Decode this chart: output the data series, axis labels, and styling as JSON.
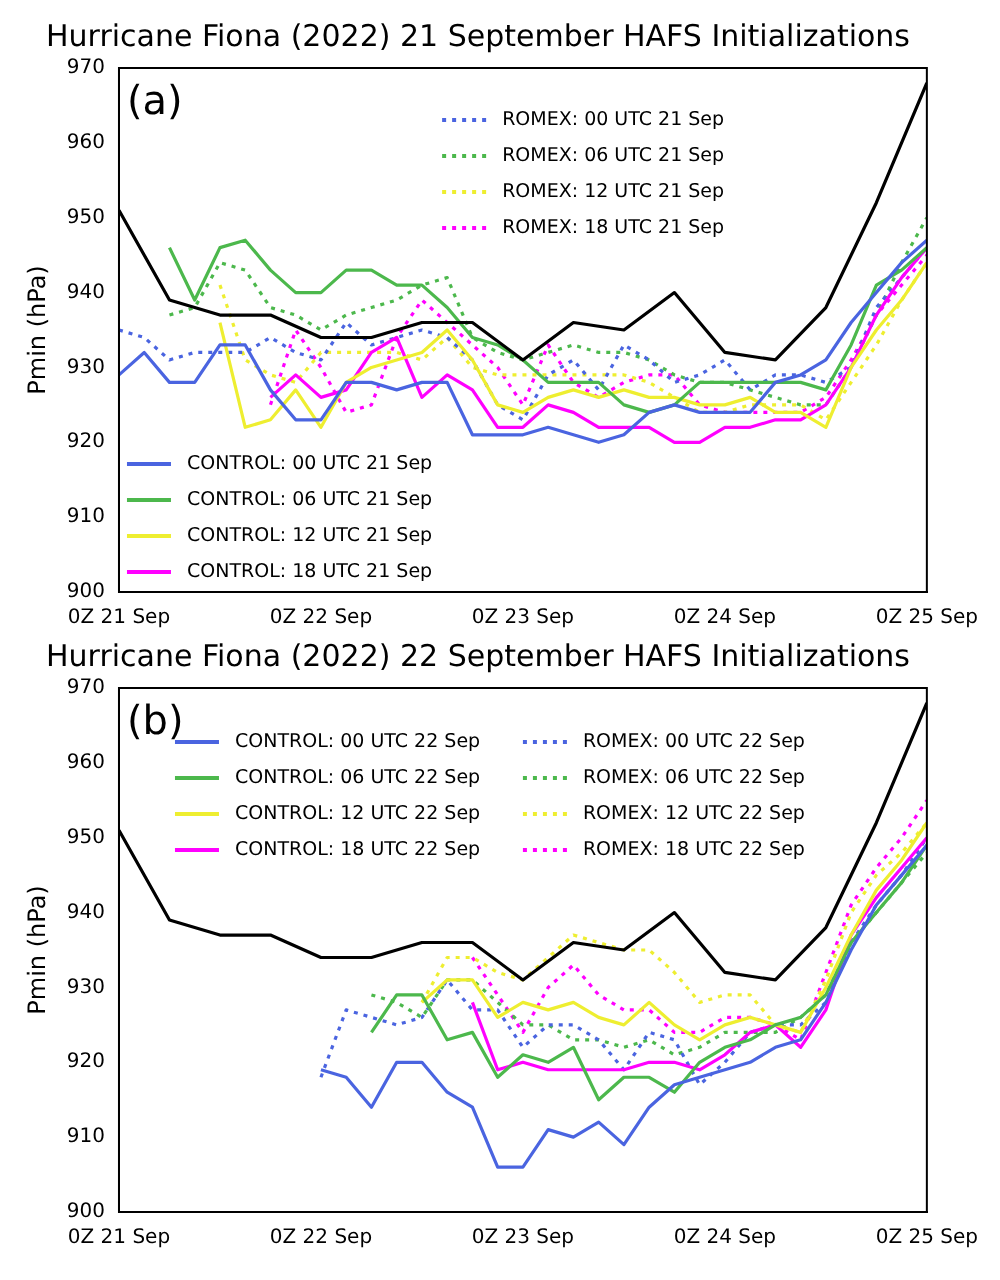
{
  "chart_data": [
    {
      "type": "line",
      "title": "Hurricane Fiona (2022) 21 September HAFS Initializations",
      "ylabel": "Pmin (hPa)",
      "annotations": [
        "(a)"
      ],
      "x": [
        "2022-09-21T00:00",
        "2022-09-21T03:00",
        "2022-09-21T06:00",
        "2022-09-21T09:00",
        "2022-09-21T12:00",
        "2022-09-21T15:00",
        "2022-09-21T18:00",
        "2022-09-21T21:00",
        "2022-09-22T00:00",
        "2022-09-22T03:00",
        "2022-09-22T06:00",
        "2022-09-22T09:00",
        "2022-09-22T12:00",
        "2022-09-22T15:00",
        "2022-09-22T18:00",
        "2022-09-22T21:00",
        "2022-09-23T00:00",
        "2022-09-23T03:00",
        "2022-09-23T06:00",
        "2022-09-23T09:00",
        "2022-09-23T12:00",
        "2022-09-23T15:00",
        "2022-09-23T18:00",
        "2022-09-23T21:00",
        "2022-09-24T00:00",
        "2022-09-24T03:00",
        "2022-09-24T06:00",
        "2022-09-24T09:00",
        "2022-09-24T12:00",
        "2022-09-24T15:00",
        "2022-09-24T18:00",
        "2022-09-24T21:00",
        "2022-09-25T00:00"
      ],
      "xlim": [
        "2022-09-21T00:00",
        "2022-09-25T00:00"
      ],
      "xticks": [
        {
          "value": "2022-09-21T00:00",
          "label": "0Z 21 Sep"
        },
        {
          "value": "2022-09-22T00:00",
          "label": "0Z 22 Sep"
        },
        {
          "value": "2022-09-23T00:00",
          "label": "0Z 23 Sep"
        },
        {
          "value": "2022-09-24T00:00",
          "label": "0Z 24 Sep"
        },
        {
          "value": "2022-09-25T00:00",
          "label": "0Z 25 Sep"
        }
      ],
      "ylim": [
        900,
        970
      ],
      "yticks": [
        900,
        910,
        920,
        930,
        940,
        950,
        960,
        970
      ],
      "grid": false,
      "legend": "bottom left",
      "marker": "none",
      "series": [
        {
          "color": "#000000",
          "line_style": "solid",
          "x": [
            "2022-09-21T00:00",
            "2022-09-21T06:00",
            "2022-09-21T12:00",
            "2022-09-21T18:00",
            "2022-09-22T00:00",
            "2022-09-22T06:00",
            "2022-09-22T12:00",
            "2022-09-22T18:00",
            "2022-09-23T00:00",
            "2022-09-23T06:00",
            "2022-09-23T12:00",
            "2022-09-23T18:00",
            "2022-09-24T00:00",
            "2022-09-24T06:00",
            "2022-09-24T12:00",
            "2022-09-24T18:00",
            "2022-09-25T00:00"
          ],
          "values": [
            951,
            939,
            937,
            937,
            934,
            934,
            936,
            936,
            931,
            936,
            935,
            940,
            932,
            931,
            938,
            952,
            968
          ]
        },
        {
          "name": "CONTROL: 00 UTC 21 Sep",
          "color": "#4a64e0",
          "line_style": "solid",
          "values": [
            929,
            932,
            928,
            928,
            933,
            933,
            927,
            923,
            923,
            928,
            928,
            927,
            928,
            928,
            921,
            921,
            921,
            922,
            921,
            920,
            921,
            924,
            925,
            924,
            924,
            924,
            928,
            929,
            931,
            936,
            940,
            944,
            947
          ]
        },
        {
          "name": "CONTROL: 06 UTC 21 Sep",
          "color": "#4cb84c",
          "line_style": "solid",
          "values": [
            null,
            null,
            946,
            939,
            946,
            947,
            943,
            940,
            940,
            943,
            943,
            941,
            941,
            938,
            934,
            933,
            931,
            928,
            928,
            928,
            925,
            924,
            925,
            928,
            928,
            928,
            928,
            928,
            927,
            933,
            941,
            943,
            946
          ]
        },
        {
          "name": "CONTROL: 12 UTC 21 Sep",
          "color": "#eeee30",
          "line_style": "solid",
          "values": [
            null,
            null,
            null,
            null,
            936,
            922,
            923,
            927,
            922,
            928,
            930,
            931,
            932,
            935,
            931,
            925,
            924,
            926,
            927,
            926,
            927,
            926,
            926,
            925,
            925,
            926,
            924,
            924,
            922,
            930,
            935,
            939,
            944
          ]
        },
        {
          "name": "CONTROL: 18 UTC 21 Sep",
          "color": "#ff00ff",
          "line_style": "solid",
          "values": [
            null,
            null,
            null,
            null,
            null,
            null,
            926,
            929,
            926,
            927,
            932,
            934,
            926,
            929,
            927,
            922,
            922,
            925,
            924,
            922,
            922,
            922,
            920,
            920,
            922,
            922,
            923,
            923,
            925,
            930,
            937,
            942,
            946
          ]
        },
        {
          "name": "ROMEX: 00 UTC 21 Sep",
          "color": "#4a64e0",
          "line_style": "dotted",
          "values": [
            935,
            934,
            931,
            932,
            932,
            932,
            934,
            932,
            931,
            936,
            933,
            934,
            935,
            934,
            931,
            925,
            923,
            929,
            931,
            927,
            933,
            931,
            928,
            929,
            931,
            927,
            929,
            929,
            928,
            930,
            938,
            942,
            946
          ]
        },
        {
          "name": "ROMEX: 06 UTC 21 Sep",
          "color": "#4cb84c",
          "line_style": "dotted",
          "values": [
            null,
            null,
            937,
            938,
            944,
            943,
            938,
            937,
            935,
            937,
            938,
            939,
            941,
            942,
            934,
            932,
            931,
            932,
            933,
            932,
            932,
            931,
            929,
            928,
            928,
            927,
            926,
            925,
            925,
            930,
            937,
            944,
            950
          ]
        },
        {
          "name": "ROMEX: 12 UTC 21 Sep",
          "color": "#eeee30",
          "line_style": "dotted",
          "values": [
            null,
            null,
            null,
            null,
            941,
            931,
            929,
            928,
            932,
            932,
            932,
            932,
            931,
            934,
            930,
            929,
            929,
            929,
            929,
            929,
            929,
            928,
            926,
            924,
            924,
            925,
            925,
            925,
            923,
            928,
            933,
            939,
            944
          ]
        },
        {
          "name": "ROMEX: 18 UTC 21 Sep",
          "color": "#ff00ff",
          "line_style": "dotted",
          "values": [
            null,
            null,
            null,
            null,
            null,
            null,
            925,
            935,
            930,
            924,
            925,
            934,
            939,
            936,
            933,
            930,
            925,
            933,
            928,
            926,
            928,
            929,
            929,
            925,
            924,
            924,
            924,
            924,
            926,
            931,
            937,
            941,
            945
          ]
        }
      ]
    },
    {
      "type": "line",
      "title": "Hurricane Fiona (2022) 22 September HAFS Initializations",
      "ylabel": "Pmin (hPa)",
      "annotations": [
        "(b)"
      ],
      "x": [
        "2022-09-22T00:00",
        "2022-09-22T03:00",
        "2022-09-22T06:00",
        "2022-09-22T09:00",
        "2022-09-22T12:00",
        "2022-09-22T15:00",
        "2022-09-22T18:00",
        "2022-09-22T21:00",
        "2022-09-23T00:00",
        "2022-09-23T03:00",
        "2022-09-23T06:00",
        "2022-09-23T09:00",
        "2022-09-23T12:00",
        "2022-09-23T15:00",
        "2022-09-23T18:00",
        "2022-09-23T21:00",
        "2022-09-24T00:00",
        "2022-09-24T03:00",
        "2022-09-24T06:00",
        "2022-09-24T09:00",
        "2022-09-24T12:00",
        "2022-09-24T15:00",
        "2022-09-24T18:00",
        "2022-09-24T21:00",
        "2022-09-25T00:00"
      ],
      "xlim": [
        "2022-09-21T00:00",
        "2022-09-25T00:00"
      ],
      "xticks": [
        {
          "value": "2022-09-21T00:00",
          "label": "0Z 21 Sep"
        },
        {
          "value": "2022-09-22T00:00",
          "label": "0Z 22 Sep"
        },
        {
          "value": "2022-09-23T00:00",
          "label": "0Z 23 Sep"
        },
        {
          "value": "2022-09-24T00:00",
          "label": "0Z 24 Sep"
        },
        {
          "value": "2022-09-25T00:00",
          "label": "0Z 25 Sep"
        }
      ],
      "ylim": [
        900,
        970
      ],
      "yticks": [
        900,
        910,
        920,
        930,
        940,
        950,
        960,
        970
      ],
      "grid": false,
      "legend": "top",
      "marker": "none",
      "series": [
        {
          "color": "#000000",
          "line_style": "solid",
          "x": [
            "2022-09-21T00:00",
            "2022-09-21T06:00",
            "2022-09-21T12:00",
            "2022-09-21T18:00",
            "2022-09-22T00:00",
            "2022-09-22T06:00",
            "2022-09-22T12:00",
            "2022-09-22T18:00",
            "2022-09-23T00:00",
            "2022-09-23T06:00",
            "2022-09-23T12:00",
            "2022-09-23T18:00",
            "2022-09-24T00:00",
            "2022-09-24T06:00",
            "2022-09-24T12:00",
            "2022-09-24T18:00",
            "2022-09-25T00:00"
          ],
          "values": [
            951,
            939,
            937,
            937,
            934,
            934,
            936,
            936,
            931,
            936,
            935,
            940,
            932,
            931,
            938,
            952,
            968
          ]
        },
        {
          "name": "CONTROL: 00 UTC 22 Sep",
          "color": "#4a64e0",
          "line_style": "solid",
          "values": [
            919,
            918,
            914,
            920,
            920,
            916,
            914,
            906,
            906,
            911,
            910,
            912,
            909,
            914,
            917,
            918,
            919,
            920,
            922,
            923,
            928,
            935,
            941,
            945,
            949
          ]
        },
        {
          "name": "CONTROL: 06 UTC 22 Sep",
          "color": "#4cb84c",
          "line_style": "solid",
          "values": [
            null,
            null,
            924,
            929,
            929,
            923,
            924,
            918,
            921,
            920,
            922,
            915,
            918,
            918,
            916,
            920,
            922,
            923,
            925,
            926,
            929,
            936,
            940,
            944,
            949
          ]
        },
        {
          "name": "CONTROL: 12 UTC 22 Sep",
          "color": "#eeee30",
          "line_style": "solid",
          "values": [
            null,
            null,
            null,
            null,
            928,
            931,
            931,
            926,
            928,
            927,
            928,
            926,
            925,
            928,
            925,
            923,
            925,
            926,
            925,
            924,
            930,
            937,
            943,
            947,
            952
          ]
        },
        {
          "name": "CONTROL: 18 UTC 22 Sep",
          "color": "#ff00ff",
          "line_style": "solid",
          "values": [
            null,
            null,
            null,
            null,
            null,
            null,
            928,
            919,
            920,
            919,
            919,
            919,
            919,
            920,
            920,
            919,
            921,
            924,
            925,
            922,
            927,
            937,
            942,
            946,
            950
          ]
        },
        {
          "name": "ROMEX: 00 UTC 22 Sep",
          "color": "#4a64e0",
          "line_style": "dotted",
          "values": [
            918,
            927,
            926,
            925,
            926,
            931,
            927,
            927,
            922,
            925,
            925,
            923,
            919,
            924,
            923,
            917,
            920,
            924,
            925,
            925,
            928,
            936,
            941,
            945,
            950
          ]
        },
        {
          "name": "ROMEX: 06 UTC 22 Sep",
          "color": "#4cb84c",
          "line_style": "dotted",
          "values": [
            null,
            null,
            929,
            928,
            926,
            931,
            931,
            928,
            925,
            925,
            923,
            923,
            922,
            923,
            921,
            922,
            924,
            924,
            924,
            926,
            929,
            936,
            940,
            944,
            948
          ]
        },
        {
          "name": "ROMEX: 12 UTC 22 Sep",
          "color": "#eeee30",
          "line_style": "dotted",
          "values": [
            null,
            null,
            null,
            null,
            928,
            934,
            934,
            932,
            931,
            934,
            937,
            936,
            935,
            935,
            932,
            928,
            929,
            929,
            925,
            924,
            931,
            940,
            945,
            948,
            952
          ]
        },
        {
          "name": "ROMEX: 18 UTC 22 Sep",
          "color": "#ff00ff",
          "line_style": "dotted",
          "values": [
            null,
            null,
            null,
            null,
            null,
            null,
            934,
            929,
            924,
            930,
            933,
            929,
            927,
            927,
            924,
            924,
            926,
            926,
            925,
            923,
            932,
            941,
            946,
            950,
            955
          ]
        }
      ]
    }
  ]
}
